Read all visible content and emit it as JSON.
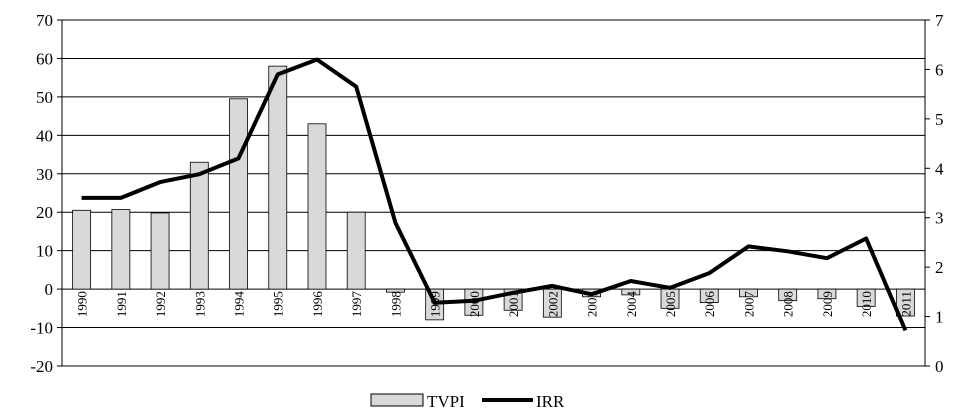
{
  "chart_data": {
    "type": "bar",
    "categories": [
      "1990",
      "1991",
      "1992",
      "1993",
      "1994",
      "1995",
      "1996",
      "1997",
      "1998",
      "1999",
      "2000",
      "2001",
      "2002",
      "2003",
      "2004",
      "2005",
      "2006",
      "2007",
      "2008",
      "2009",
      "2010",
      "2011"
    ],
    "series": [
      {
        "name": "TVPI",
        "type": "bar",
        "axis": "left",
        "color": "#d9d9d9",
        "values": [
          20.5,
          20.7,
          19.8,
          33.0,
          49.5,
          58.0,
          43.0,
          20.0,
          -0.8,
          -8.0,
          -6.8,
          -5.5,
          -7.3,
          -2.0,
          -1.5,
          -5.0,
          -3.5,
          -2.0,
          -3.0,
          -2.5,
          -4.5,
          -7.0
        ]
      },
      {
        "name": "IRR",
        "type": "line",
        "axis": "right",
        "color": "#000000",
        "values": [
          3.4,
          3.4,
          3.72,
          3.88,
          4.2,
          5.9,
          6.2,
          5.65,
          2.9,
          1.28,
          1.32,
          1.48,
          1.62,
          1.45,
          1.72,
          1.58,
          1.88,
          2.42,
          2.32,
          2.18,
          2.58,
          0.72
        ]
      }
    ],
    "axes": {
      "left": {
        "min": -20,
        "max": 70,
        "step": 10,
        "ticks": [
          "-20",
          "-10",
          "0",
          "10",
          "20",
          "30",
          "40",
          "50",
          "60",
          "70"
        ]
      },
      "right": {
        "min": 0,
        "max": 7,
        "step": 1,
        "ticks": [
          "0",
          "1",
          "2",
          "3",
          "4",
          "5",
          "6",
          "7"
        ]
      }
    },
    "grid": true,
    "legend": {
      "position": "bottom",
      "entries": [
        "TVPI",
        "IRR"
      ]
    }
  }
}
